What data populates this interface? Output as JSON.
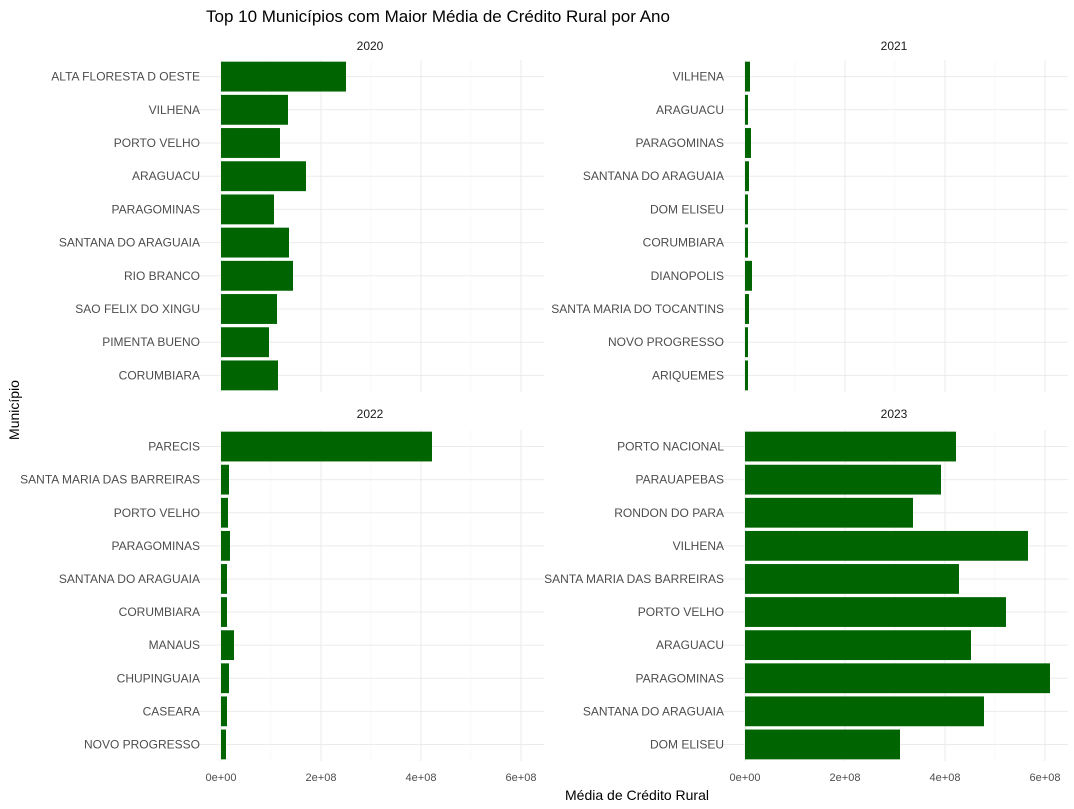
{
  "chart_data": {
    "type": "bar",
    "orientation": "horizontal",
    "title": "Top 10 Municípios com Maior Média de Crédito Rural por Ano",
    "xlabel": "Média de Crédito Rural",
    "ylabel": "Município",
    "xlim": [
      0,
      640000000
    ],
    "x_ticks": [
      0,
      200000000,
      400000000,
      600000000
    ],
    "x_tick_labels": [
      "0e+00",
      "2e+08",
      "4e+08",
      "6e+08"
    ],
    "bar_color": "#006400",
    "grid": true,
    "legend": "none",
    "facets": [
      {
        "label": "2020",
        "categories": [
          "ALTA FLORESTA D OESTE",
          "VILHENA",
          "PORTO VELHO",
          "ARAGUACU",
          "PARAGOMINAS",
          "SANTANA DO ARAGUAIA",
          "RIO BRANCO",
          "SAO FELIX DO XINGU",
          "PIMENTA BUENO",
          "CORUMBIARA"
        ],
        "values": [
          250000000,
          134000000,
          118000000,
          170000000,
          106000000,
          136000000,
          144000000,
          112000000,
          96000000,
          114000000
        ]
      },
      {
        "label": "2021",
        "categories": [
          "VILHENA",
          "ARAGUACU",
          "PARAGOMINAS",
          "SANTANA DO ARAGUAIA",
          "DOM ELISEU",
          "CORUMBIARA",
          "DIANOPOLIS",
          "SANTA MARIA DO TOCANTINS",
          "NOVO PROGRESSO",
          "ARIQUEMES"
        ],
        "values": [
          10000000,
          6000000,
          12000000,
          8000000,
          6000000,
          6000000,
          14000000,
          8000000,
          6000000,
          6000000
        ]
      },
      {
        "label": "2022",
        "categories": [
          "PARECIS",
          "SANTA MARIA DAS BARREIRAS",
          "PORTO VELHO",
          "PARAGOMINAS",
          "SANTANA DO ARAGUAIA",
          "CORUMBIARA",
          "MANAUS",
          "CHUPINGUAIA",
          "CASEARA",
          "NOVO PROGRESSO"
        ],
        "values": [
          422000000,
          16000000,
          14000000,
          18000000,
          12000000,
          12000000,
          26000000,
          16000000,
          12000000,
          10000000
        ]
      },
      {
        "label": "2023",
        "categories": [
          "PORTO NACIONAL",
          "PARAUAPEBAS",
          "RONDON DO PARA",
          "VILHENA",
          "SANTA MARIA DAS BARREIRAS",
          "PORTO VELHO",
          "ARAGUACU",
          "PARAGOMINAS",
          "SANTANA DO ARAGUAIA",
          "DOM ELISEU"
        ],
        "values": [
          422000000,
          392000000,
          336000000,
          566000000,
          428000000,
          522000000,
          452000000,
          610000000,
          478000000,
          310000000
        ]
      }
    ]
  }
}
